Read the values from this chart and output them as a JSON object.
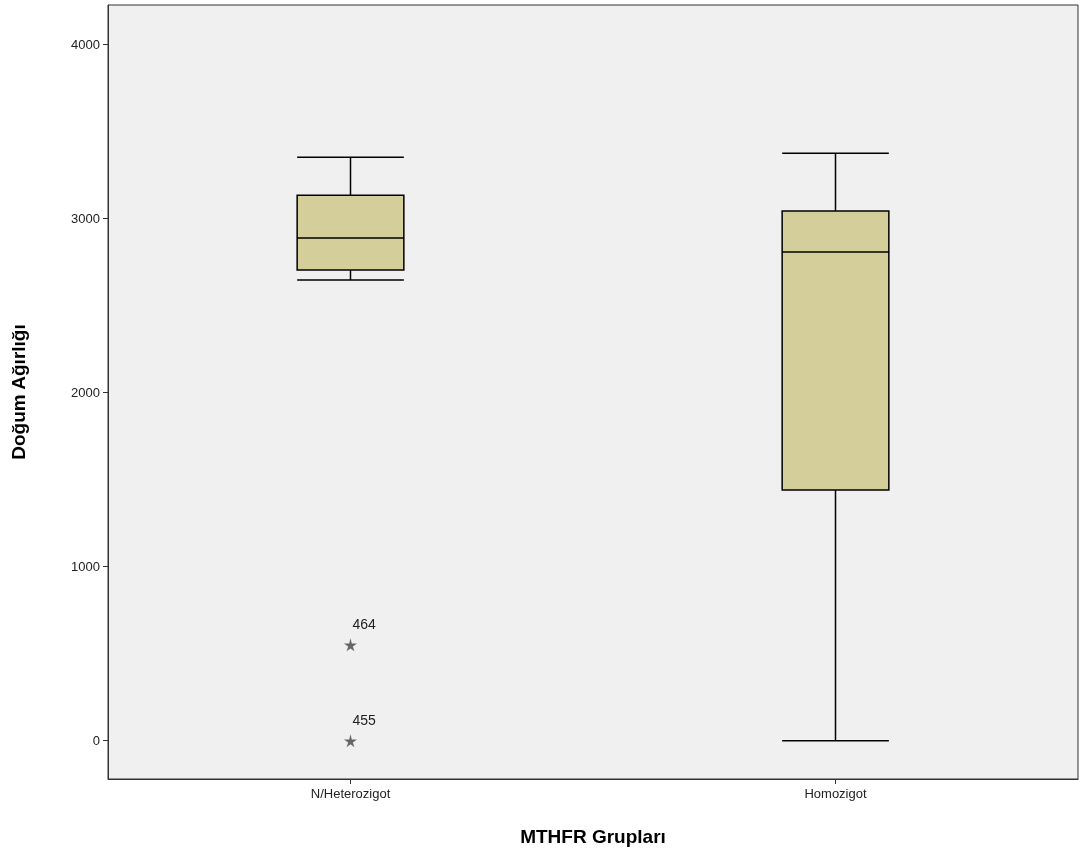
{
  "chart_data": {
    "type": "box",
    "xlabel": "MTHFR Grupları",
    "ylabel": "Doğum Ağırlığı",
    "categories": [
      "N/Heterozigot",
      "Homozigot"
    ],
    "color": "#d4cf9a",
    "boxes": [
      {
        "low": 2646,
        "q1": 2703,
        "median": 2887,
        "q3": 3133,
        "high": 3351,
        "outliers": [
          551,
          0
        ]
      },
      {
        "low": 0,
        "q1": 1440,
        "median": 2806,
        "q3": 3042,
        "high": 3374
      }
    ],
    "marker": "star",
    "ylim": [
      -220,
      4225
    ],
    "yticks": [
      0,
      1000,
      2000,
      3000,
      4000
    ],
    "grid": false,
    "annotations": [
      "464",
      "455"
    ]
  }
}
